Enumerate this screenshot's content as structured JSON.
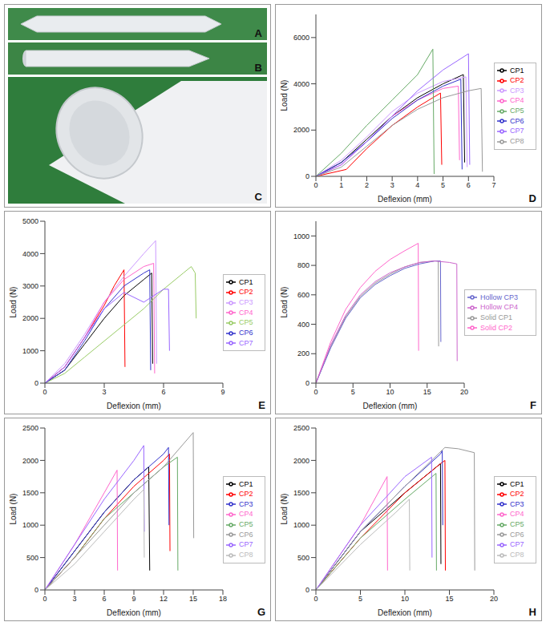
{
  "photo_panels": [
    {
      "label": "A"
    },
    {
      "label": "B"
    },
    {
      "label": "C"
    }
  ],
  "chart_data": [
    {
      "panel": "D",
      "type": "line",
      "x_label": "Deflexion (mm)",
      "y_label": "Load (N)",
      "xlim": [
        0,
        7
      ],
      "xticks": [
        0,
        1,
        2,
        3,
        4,
        5,
        6,
        7
      ],
      "ylim": [
        0,
        7000
      ],
      "yticks": [
        0,
        2000,
        4000,
        6000
      ],
      "legend": "right",
      "series": [
        {
          "name": "CP1",
          "color": "#000000",
          "x": [
            0,
            1,
            2,
            3,
            4,
            5,
            5.8,
            5.85
          ],
          "values": [
            0,
            600,
            1600,
            2600,
            3400,
            4000,
            4400,
            600
          ]
        },
        {
          "name": "CP2",
          "color": "#ff0000",
          "x": [
            0,
            1.2,
            2,
            3,
            4,
            4.9,
            4.95
          ],
          "values": [
            0,
            300,
            1200,
            2200,
            3000,
            3600,
            500
          ]
        },
        {
          "name": "CP3",
          "color": "#cc99ff",
          "x": [
            0,
            1,
            2,
            3,
            4,
            5,
            5.9,
            5.95
          ],
          "values": [
            0,
            700,
            1700,
            2800,
            3600,
            4100,
            4300,
            400
          ]
        },
        {
          "name": "CP4",
          "color": "#ff66cc",
          "x": [
            0,
            1,
            2,
            3,
            4,
            5,
            5.6,
            5.65
          ],
          "values": [
            0,
            500,
            1500,
            2600,
            3300,
            3800,
            3900,
            700
          ]
        },
        {
          "name": "CP5",
          "color": "#66aa66",
          "x": [
            0,
            1,
            2,
            3,
            4,
            4.6,
            4.65
          ],
          "values": [
            0,
            1000,
            2200,
            3300,
            4400,
            5500,
            100
          ]
        },
        {
          "name": "CP6",
          "color": "#3333cc",
          "x": [
            0,
            1,
            2,
            3,
            4,
            5,
            5.7,
            5.75
          ],
          "values": [
            0,
            600,
            1500,
            2500,
            3300,
            3900,
            4200,
            300
          ]
        },
        {
          "name": "CP7",
          "color": "#9966ff",
          "x": [
            0,
            1,
            2,
            3,
            4,
            5,
            6,
            6.05
          ],
          "values": [
            0,
            500,
            1500,
            2600,
            3700,
            4600,
            5300,
            500
          ]
        },
        {
          "name": "CP8",
          "color": "#999999",
          "x": [
            0,
            1,
            2,
            3,
            4,
            5,
            6,
            6.5,
            6.55
          ],
          "values": [
            0,
            400,
            1300,
            2200,
            2900,
            3400,
            3700,
            3800,
            200
          ]
        }
      ]
    },
    {
      "panel": "E",
      "type": "line",
      "x_label": "Deflexion (mm)",
      "y_label": "Load (N)",
      "xlim": [
        0,
        9
      ],
      "xticks": [
        0,
        3,
        6,
        9
      ],
      "ylim": [
        0,
        5000
      ],
      "yticks": [
        0,
        1000,
        2000,
        3000,
        4000,
        5000
      ],
      "legend": "right",
      "series": [
        {
          "name": "CP1",
          "color": "#000000",
          "x": [
            0,
            1,
            2,
            3,
            4,
            5,
            5.4,
            5.45
          ],
          "values": [
            0,
            400,
            1200,
            2000,
            2700,
            3200,
            3400,
            600
          ]
        },
        {
          "name": "CP2",
          "color": "#ff0000",
          "x": [
            0,
            1,
            2,
            3,
            3.5,
            4,
            4.05
          ],
          "values": [
            0,
            500,
            1400,
            2400,
            3000,
            3500,
            500
          ]
        },
        {
          "name": "CP3",
          "color": "#cc99ff",
          "x": [
            0,
            1,
            2,
            3,
            4,
            5,
            5.6,
            5.65
          ],
          "values": [
            0,
            600,
            1500,
            2500,
            3300,
            4000,
            4400,
            600
          ]
        },
        {
          "name": "CP4",
          "color": "#ff66cc",
          "x": [
            0,
            1,
            2,
            3,
            4,
            5,
            5.5,
            5.55
          ],
          "values": [
            0,
            500,
            1400,
            2500,
            3200,
            3600,
            3700,
            300
          ]
        },
        {
          "name": "CP5",
          "color": "#99cc66",
          "x": [
            0,
            1,
            2,
            3,
            4,
            5,
            6,
            7,
            7.4,
            7.6,
            7.65
          ],
          "values": [
            0,
            300,
            800,
            1300,
            1800,
            2300,
            2900,
            3400,
            3600,
            3400,
            2000
          ]
        },
        {
          "name": "CP6",
          "color": "#3333cc",
          "x": [
            0,
            1,
            2,
            3,
            4,
            5,
            5.3,
            5.35
          ],
          "values": [
            0,
            400,
            1300,
            2300,
            3000,
            3400,
            3500,
            400
          ]
        },
        {
          "name": "CP7",
          "color": "#9966ff",
          "x": [
            0,
            1,
            2,
            3,
            4,
            5,
            5.5,
            6,
            6.25,
            6.3
          ],
          "values": [
            0,
            500,
            1400,
            2300,
            2800,
            2500,
            2700,
            2900,
            2900,
            1000
          ]
        }
      ]
    },
    {
      "panel": "F",
      "type": "line",
      "x_label": "Deflexion (mm)",
      "y_label": "Load (N)",
      "xlim": [
        0,
        20
      ],
      "xticks": [
        0,
        5,
        10,
        15,
        20
      ],
      "ylim": [
        0,
        1100
      ],
      "yticks": [
        0,
        200,
        400,
        600,
        800,
        1000
      ],
      "legend": "right",
      "series": [
        {
          "name": "Solid CP1",
          "color": "#999999",
          "x": [
            0,
            2,
            4,
            6,
            8,
            10,
            12,
            14,
            16,
            16.5,
            16.55
          ],
          "values": [
            0,
            250,
            450,
            590,
            680,
            740,
            790,
            820,
            830,
            830,
            250
          ]
        },
        {
          "name": "Solid CP2",
          "color": "#ff66cc",
          "x": [
            0,
            2,
            4,
            6,
            8,
            10,
            12,
            13.8,
            13.85
          ],
          "values": [
            0,
            280,
            500,
            650,
            760,
            840,
            900,
            950,
            220
          ]
        },
        {
          "name": "Hollow CP3",
          "color": "#6666cc",
          "x": [
            0,
            2,
            4,
            6,
            8,
            10,
            12,
            14,
            16,
            16.8,
            16.85
          ],
          "values": [
            0,
            240,
            440,
            580,
            670,
            730,
            780,
            810,
            830,
            830,
            280
          ]
        },
        {
          "name": "Hollow CP4",
          "color": "#cc66cc",
          "x": [
            0,
            2,
            4,
            6,
            8,
            10,
            12,
            14,
            16,
            18,
            19,
            19.05
          ],
          "values": [
            0,
            260,
            460,
            600,
            690,
            750,
            790,
            820,
            830,
            820,
            810,
            150
          ]
        }
      ]
    },
    {
      "panel": "G",
      "type": "line",
      "x_label": "Deflexion (mm)",
      "y_label": "Load (N)",
      "xlim": [
        0,
        18
      ],
      "xticks": [
        0,
        3,
        6,
        9,
        12,
        15,
        18
      ],
      "ylim": [
        0,
        2500
      ],
      "yticks": [
        0,
        500,
        1000,
        1500,
        2000,
        2500
      ],
      "legend": "right",
      "series": [
        {
          "name": "CP1",
          "color": "#000000",
          "x": [
            0,
            3,
            6,
            9,
            10.5,
            10.6
          ],
          "values": [
            0,
            600,
            1200,
            1700,
            1900,
            300
          ]
        },
        {
          "name": "CP2",
          "color": "#ff0000",
          "x": [
            0,
            3,
            6,
            9,
            12,
            12.6,
            12.65
          ],
          "values": [
            0,
            500,
            1100,
            1600,
            2000,
            2100,
            600
          ]
        },
        {
          "name": "CP3",
          "color": "#3333cc",
          "x": [
            0,
            3,
            6,
            9,
            12,
            12.5,
            12.55
          ],
          "values": [
            0,
            600,
            1200,
            1700,
            2100,
            2200,
            1000
          ]
        },
        {
          "name": "CP4",
          "color": "#ff66cc",
          "x": [
            0,
            3,
            6,
            7.3,
            7.35
          ],
          "values": [
            0,
            700,
            1500,
            1850,
            300
          ]
        },
        {
          "name": "CP5",
          "color": "#66aa66",
          "x": [
            0,
            3,
            6,
            9,
            12,
            13.4,
            13.45
          ],
          "values": [
            0,
            500,
            1100,
            1500,
            1900,
            2050,
            300
          ]
        },
        {
          "name": "CP6",
          "color": "#999999",
          "x": [
            0,
            3,
            6,
            9,
            12,
            15,
            15.05
          ],
          "values": [
            0,
            500,
            1000,
            1500,
            1900,
            2430,
            800
          ]
        },
        {
          "name": "CP7",
          "color": "#9966ff",
          "x": [
            0,
            3,
            6,
            9,
            10,
            10.05
          ],
          "values": [
            0,
            700,
            1400,
            2000,
            2230,
            900
          ]
        },
        {
          "name": "CP8",
          "color": "#bbbbbb",
          "x": [
            0,
            3,
            6,
            9,
            10,
            10.05
          ],
          "values": [
            0,
            400,
            900,
            1400,
            1550,
            500
          ]
        }
      ]
    },
    {
      "panel": "H",
      "type": "line",
      "x_label": "Deflexion (mm)",
      "y_label": "Load (N)",
      "xlim": [
        0,
        20
      ],
      "xticks": [
        0,
        5,
        10,
        15,
        20
      ],
      "ylim": [
        0,
        2500
      ],
      "yticks": [
        0,
        500,
        1000,
        1500,
        2000,
        2500
      ],
      "legend": "right",
      "series": [
        {
          "name": "CP1",
          "color": "#000000",
          "x": [
            0,
            5,
            10,
            14,
            14.05
          ],
          "values": [
            0,
            900,
            1500,
            1950,
            400
          ]
        },
        {
          "name": "CP2",
          "color": "#ff0000",
          "x": [
            0,
            5,
            10,
            14,
            14.5,
            14.55
          ],
          "values": [
            0,
            800,
            1500,
            1950,
            2000,
            300
          ]
        },
        {
          "name": "CP3",
          "color": "#3333cc",
          "x": [
            0,
            5,
            10,
            14,
            14.2,
            14.25
          ],
          "values": [
            0,
            900,
            1600,
            2100,
            2150,
            1000
          ]
        },
        {
          "name": "CP4",
          "color": "#ff66cc",
          "x": [
            0,
            5,
            8,
            8.05
          ],
          "values": [
            0,
            1000,
            1750,
            300
          ]
        },
        {
          "name": "CP5",
          "color": "#66aa66",
          "x": [
            0,
            5,
            10,
            13.5,
            13.55
          ],
          "values": [
            0,
            800,
            1400,
            1800,
            300
          ]
        },
        {
          "name": "CP6",
          "color": "#999999",
          "x": [
            0,
            5,
            10,
            14.5,
            16,
            17.8,
            17.85
          ],
          "values": [
            0,
            900,
            1600,
            2200,
            2180,
            2120,
            300
          ]
        },
        {
          "name": "CP7",
          "color": "#9966ff",
          "x": [
            0,
            5,
            10,
            13,
            13.05
          ],
          "values": [
            0,
            1000,
            1750,
            2050,
            500
          ]
        },
        {
          "name": "CP8",
          "color": "#bbbbbb",
          "x": [
            0,
            5,
            9,
            10.5,
            10.55
          ],
          "values": [
            0,
            700,
            1200,
            1400,
            300
          ]
        }
      ]
    }
  ]
}
